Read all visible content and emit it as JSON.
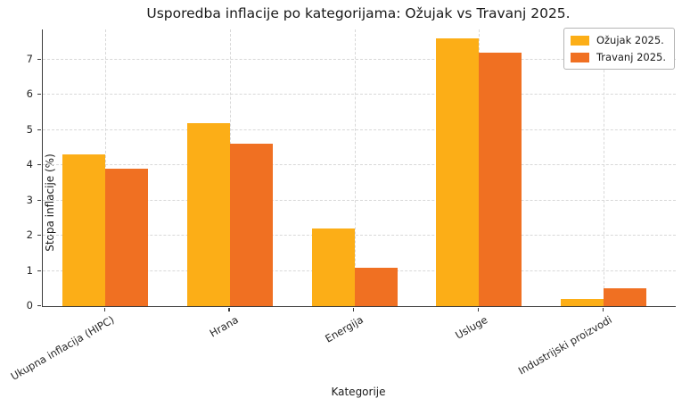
{
  "title": "Usporedba inflacije po kategorijama: Ožujak vs Travanj 2025.",
  "chart_data": {
    "type": "bar",
    "categories": [
      "Ukupna inflacija (HIPC)",
      "Hrana",
      "Energija",
      "Usluge",
      "Industrijski proizvodi"
    ],
    "series": [
      {
        "name": "Ožujak 2025.",
        "color": "#FCAE17",
        "values": [
          4.3,
          5.2,
          2.2,
          7.6,
          0.2
        ]
      },
      {
        "name": "Travanj 2025.",
        "color": "#F07022",
        "values": [
          3.9,
          4.6,
          1.1,
          7.2,
          0.5
        ]
      }
    ],
    "title": "Usporedba inflacije po kategorijama: Ožujak vs Travanj 2025.",
    "xlabel": "Kategorije",
    "ylabel": "Stopa inflacije (%)",
    "ylim": [
      0,
      7.85
    ],
    "yticks": [
      0,
      1,
      2,
      3,
      4,
      5,
      6,
      7
    ],
    "grid": "dashed-both-axes",
    "legend_position": "upper right",
    "grid_color": "#d8d8d8",
    "spine_color": "#3b3b3b",
    "text_color": "#1a1a1a"
  }
}
